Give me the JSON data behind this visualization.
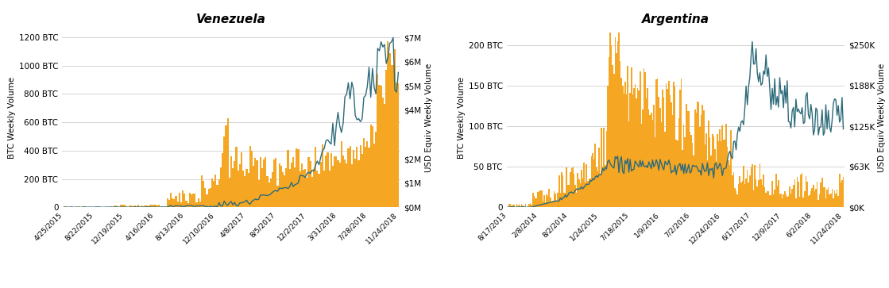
{
  "venezuela": {
    "title": "Venezuela",
    "btc_yticks": [
      0,
      200,
      400,
      600,
      800,
      1000,
      1200
    ],
    "btc_ytick_labels": [
      "0",
      "200 BTC",
      "400 BTC",
      "600 BTC",
      "800 BTC",
      "1000 BTC",
      "1200 BTC"
    ],
    "usd_ytick_labels": [
      "$0M",
      "$1M",
      "$2M",
      "$4M",
      "$5M",
      "$6M",
      "$7M"
    ],
    "usd_yticks": [
      0,
      1000000,
      2000000,
      4000000,
      5000000,
      6000000,
      7000000
    ],
    "ylim_btc": [
      0,
      1260
    ],
    "ylim_usd": [
      0,
      7350000
    ],
    "xtick_labels": [
      "4/25/2015",
      "8/22/2015",
      "12/19/2015",
      "4/16/2016",
      "8/13/2016",
      "12/10/2016",
      "4/8/2017",
      "8/5/2017",
      "12/2/2017",
      "3/31/2018",
      "7/28/2018",
      "11/24/2018"
    ],
    "ylabel_left": "BTC Weekly Volume",
    "ylabel_right": "USD Equiv Weekly Volume"
  },
  "argentina": {
    "title": "Argentina",
    "btc_yticks": [
      0,
      50,
      100,
      150,
      200
    ],
    "btc_ytick_labels": [
      "0",
      "50 BTC",
      "100 BTC",
      "150 BTC",
      "200 BTC"
    ],
    "usd_ytick_labels": [
      "$0K",
      "$63K",
      "$125K",
      "$188K",
      "$250K"
    ],
    "usd_yticks": [
      0,
      63000,
      125000,
      188000,
      250000
    ],
    "ylim_btc": [
      0,
      220
    ],
    "ylim_usd": [
      0,
      275000
    ],
    "xtick_labels": [
      "8/17/2013",
      "2/8/2014",
      "8/2/2014",
      "1/24/2015",
      "7/18/2015",
      "1/9/2016",
      "7/2/2016",
      "12/24/2016",
      "6/17/2017",
      "12/9/2017",
      "6/2/2018",
      "11/24/2018"
    ],
    "ylabel_left": "BTC Weekly Volume",
    "ylabel_right": "USD Equiv Weekly Volume"
  },
  "colors": {
    "bar": "#F5A623",
    "line": "#2E6B7A",
    "background": "#FFFFFF",
    "grid": "#CCCCCC",
    "text": "#333333"
  },
  "legend": {
    "btc_label": "BTC Weekly Volume",
    "usd_label": "USD Equiv Weekly Volume"
  }
}
